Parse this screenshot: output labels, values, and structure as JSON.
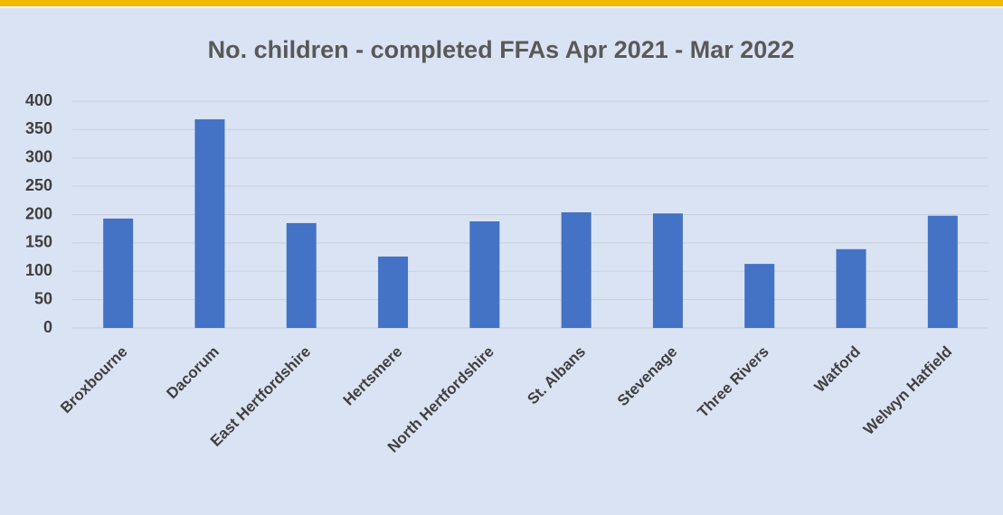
{
  "chart_data": {
    "type": "bar",
    "title": "No. children - completed FFAs Apr 2021 - Mar 2022",
    "categories": [
      "Broxbourne",
      "Dacorum",
      "East Hertfordshire",
      "Hertsmere",
      "North Hertfordshire",
      "St. Albans",
      "Stevenage",
      "Three Rivers",
      "Watford",
      "Welwyn Hatfield"
    ],
    "values": [
      193,
      368,
      185,
      126,
      188,
      204,
      202,
      113,
      139,
      198
    ],
    "color": "#4472c4",
    "ylim": [
      0,
      400
    ],
    "yticks": [
      0,
      50,
      100,
      150,
      200,
      250,
      300,
      350,
      400
    ],
    "grid": true
  }
}
